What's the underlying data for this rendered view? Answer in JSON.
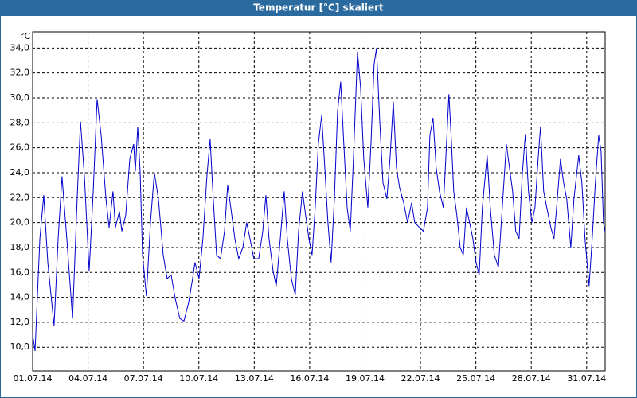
{
  "chart_data": {
    "type": "line",
    "title": "Temperatur [°C] skaliert",
    "y_unit": "°C",
    "series": [
      {
        "color": "#0000cc",
        "x": [
          0.0,
          0.13,
          0.39,
          0.6,
          0.82,
          1.16,
          1.38,
          1.59,
          1.85,
          2.16,
          2.41,
          2.59,
          2.8,
          3.06,
          3.28,
          3.49,
          3.71,
          3.97,
          4.14,
          4.35,
          4.48,
          4.7,
          4.83,
          5.04,
          5.26,
          5.47,
          5.56,
          5.69,
          5.82,
          5.95,
          6.16,
          6.38,
          6.59,
          6.81,
          7.07,
          7.28,
          7.5,
          7.72,
          7.97,
          8.19,
          8.45,
          8.66,
          8.79,
          9.01,
          9.22,
          9.44,
          9.61,
          9.78,
          9.96,
          10.17,
          10.39,
          10.56,
          10.73,
          10.95,
          11.16,
          11.38,
          11.59,
          11.77,
          11.98,
          12.24,
          12.46,
          12.63,
          12.8,
          13.02,
          13.19,
          13.41,
          13.62,
          13.79,
          14.01,
          14.22,
          14.4,
          14.61,
          14.78,
          14.96,
          15.13,
          15.3,
          15.47,
          15.65,
          15.82,
          15.99,
          16.16,
          16.34,
          16.51,
          16.68,
          16.85,
          17.03,
          17.2,
          17.37,
          17.59,
          17.76,
          17.93,
          18.15,
          18.32,
          18.49,
          18.62,
          18.79,
          18.97,
          19.18,
          19.35,
          19.53,
          19.7,
          19.87,
          20.09,
          20.3,
          20.52,
          20.69,
          20.95,
          21.16,
          21.38,
          21.51,
          21.68,
          21.85,
          22.03,
          22.24,
          22.41,
          22.54,
          22.67,
          22.8,
          22.97,
          23.15,
          23.32,
          23.49,
          23.66,
          23.84,
          24.01,
          24.18,
          24.35,
          24.61,
          24.78,
          25.0,
          25.22,
          25.43,
          25.65,
          25.82,
          25.99,
          26.16,
          26.34,
          26.51,
          26.68,
          26.85,
          27.03,
          27.2,
          27.37,
          27.5,
          27.67,
          27.84,
          28.06,
          28.23,
          28.41,
          28.58,
          28.75,
          28.92,
          29.14,
          29.31,
          29.57,
          29.74,
          29.91,
          30.13,
          30.3,
          30.47,
          30.65,
          30.78,
          30.91,
          30.99
        ],
        "values": [
          11.0,
          9.7,
          18.7,
          22.2,
          16.8,
          11.7,
          18.7,
          23.7,
          18.7,
          12.3,
          21.9,
          28.1,
          23.8,
          16.1,
          22.5,
          29.9,
          27.0,
          21.9,
          19.6,
          22.5,
          19.6,
          20.9,
          19.3,
          20.6,
          25.1,
          26.3,
          24.1,
          27.7,
          24.1,
          17.4,
          14.1,
          20.0,
          24.0,
          21.9,
          17.4,
          15.5,
          15.8,
          13.9,
          12.3,
          12.1,
          13.6,
          15.5,
          16.8,
          15.5,
          18.7,
          23.8,
          26.7,
          21.9,
          17.4,
          17.1,
          19.3,
          23.0,
          21.2,
          18.7,
          17.1,
          18.0,
          20.0,
          18.7,
          17.1,
          17.1,
          19.3,
          22.2,
          18.7,
          16.1,
          14.9,
          18.7,
          22.5,
          18.7,
          15.5,
          14.2,
          19.3,
          22.5,
          20.6,
          18.7,
          17.4,
          21.2,
          26.3,
          28.6,
          24.4,
          20.0,
          16.8,
          21.9,
          28.9,
          31.3,
          26.3,
          21.2,
          19.3,
          25.1,
          33.7,
          30.8,
          25.1,
          21.2,
          26.3,
          32.7,
          34.0,
          28.3,
          23.2,
          21.9,
          25.1,
          29.7,
          24.4,
          22.8,
          21.6,
          20.0,
          21.6,
          20.0,
          19.6,
          19.3,
          21.2,
          27.0,
          28.4,
          24.4,
          22.5,
          21.2,
          26.3,
          30.3,
          26.7,
          22.5,
          20.6,
          18.0,
          17.4,
          21.2,
          20.0,
          18.7,
          16.8,
          15.8,
          21.2,
          25.4,
          21.2,
          17.4,
          16.4,
          21.2,
          26.3,
          24.4,
          22.5,
          19.3,
          18.7,
          23.8,
          27.1,
          22.5,
          20.0,
          21.2,
          25.1,
          27.7,
          22.5,
          21.2,
          19.6,
          18.7,
          21.9,
          25.1,
          23.2,
          21.9,
          18.0,
          21.9,
          25.4,
          23.2,
          18.7,
          14.9,
          18.7,
          23.2,
          27.0,
          25.7,
          20.0,
          19.3
        ]
      }
    ],
    "xlim": [
      0,
      31
    ],
    "xticks": [
      {
        "value": 0,
        "label": "01.07.14"
      },
      {
        "value": 3,
        "label": "04.07.14"
      },
      {
        "value": 6,
        "label": "07.07.14"
      },
      {
        "value": 9,
        "label": "10.07.14"
      },
      {
        "value": 12,
        "label": "13.07.14"
      },
      {
        "value": 15,
        "label": "16.07.14"
      },
      {
        "value": 18,
        "label": "19.07.14"
      },
      {
        "value": 21,
        "label": "22.07.14"
      },
      {
        "value": 24,
        "label": "25.07.14"
      },
      {
        "value": 27,
        "label": "28.07.14"
      },
      {
        "value": 30,
        "label": "31.07.14"
      }
    ],
    "ylim": [
      8.1,
      35.3
    ],
    "yticks": [
      {
        "value": 10,
        "label": "10,0"
      },
      {
        "value": 12,
        "label": "12,0"
      },
      {
        "value": 14,
        "label": "14,0"
      },
      {
        "value": 16,
        "label": "16,0"
      },
      {
        "value": 18,
        "label": "18,0"
      },
      {
        "value": 20,
        "label": "20,0"
      },
      {
        "value": 22,
        "label": "22,0"
      },
      {
        "value": 24,
        "label": "24,0"
      },
      {
        "value": 26,
        "label": "26,0"
      },
      {
        "value": 28,
        "label": "28,0"
      },
      {
        "value": 30,
        "label": "30,0"
      },
      {
        "value": 32,
        "label": "32,0"
      },
      {
        "value": 34,
        "label": "34,0"
      }
    ],
    "grid": true
  }
}
